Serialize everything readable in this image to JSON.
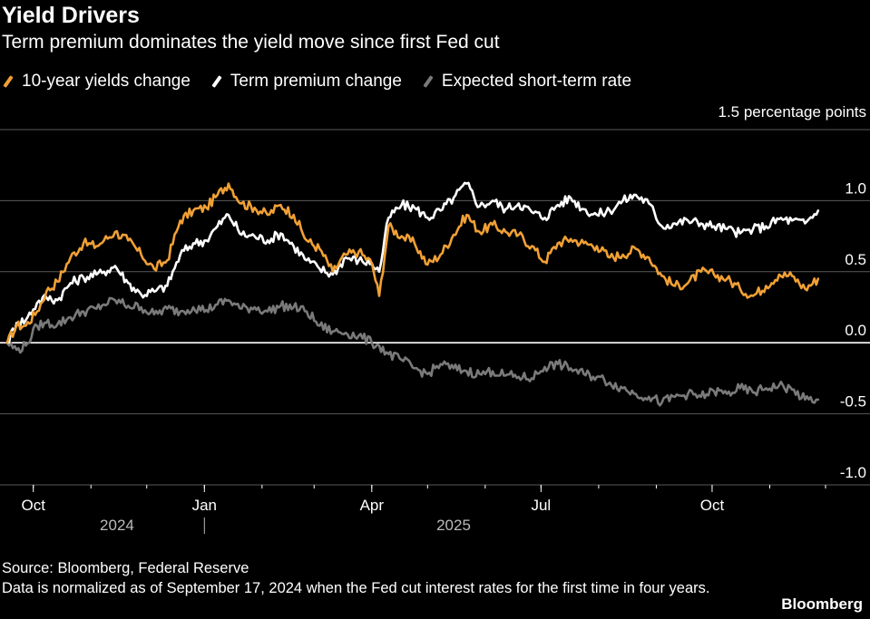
{
  "header": {
    "title": "Yield Drivers",
    "subtitle": "Term premium dominates the yield move since first Fed cut"
  },
  "legend": [
    {
      "label": "10-year yields change",
      "color": "#f0a035"
    },
    {
      "label": "Term premium change",
      "color": "#ffffff"
    },
    {
      "label": "Expected short-term rate",
      "color": "#7a7a7a"
    }
  ],
  "footer": {
    "source": "Source: Bloomberg, Federal Reserve",
    "note": "Data is normalized as of September 17, 2024 when the Fed cut interest rates for the first time in four years.",
    "brand": "Bloomberg"
  },
  "chart_data": {
    "type": "line",
    "unit_label": "1.5 percentage points",
    "ylim": [
      -1.0,
      1.5
    ],
    "yticks": [
      1.5,
      1.0,
      0.5,
      0.0,
      -0.5,
      -1.0
    ],
    "ytick_labels": [
      "",
      "1.0",
      "0.5",
      "0.0",
      "-0.5",
      "-1.0"
    ],
    "xlim": [
      "2024-09-17",
      "2025-12-01"
    ],
    "xticks": [
      {
        "date": "2024-10-01",
        "label": "Oct"
      },
      {
        "date": "2025-01-01",
        "label": "Jan"
      },
      {
        "date": "2025-04-01",
        "label": "Apr"
      },
      {
        "date": "2025-07-01",
        "label": "Jul"
      },
      {
        "date": "2025-10-01",
        "label": "Oct"
      }
    ],
    "year_labels": [
      {
        "date": "2024-11-15",
        "label": "2024"
      },
      {
        "date": "2025-05-15",
        "label": "2025"
      }
    ],
    "year_divider": "2025-01-01",
    "grid": true,
    "series": [
      {
        "name": "10-year yields change",
        "color": "#f0a035",
        "points": [
          [
            "2024-09-17",
            0.0
          ],
          [
            "2024-09-22",
            0.12
          ],
          [
            "2024-09-27",
            0.12
          ],
          [
            "2024-10-03",
            0.22
          ],
          [
            "2024-10-08",
            0.36
          ],
          [
            "2024-10-14",
            0.43
          ],
          [
            "2024-10-21",
            0.6
          ],
          [
            "2024-10-28",
            0.7
          ],
          [
            "2024-11-04",
            0.68
          ],
          [
            "2024-11-08",
            0.72
          ],
          [
            "2024-11-14",
            0.78
          ],
          [
            "2024-11-21",
            0.72
          ],
          [
            "2024-11-28",
            0.62
          ],
          [
            "2024-12-05",
            0.52
          ],
          [
            "2024-12-12",
            0.58
          ],
          [
            "2024-12-19",
            0.86
          ],
          [
            "2024-12-26",
            0.93
          ],
          [
            "2025-01-02",
            0.95
          ],
          [
            "2025-01-08",
            1.04
          ],
          [
            "2025-01-14",
            1.12
          ],
          [
            "2025-01-21",
            0.98
          ],
          [
            "2025-01-28",
            0.95
          ],
          [
            "2025-02-04",
            0.9
          ],
          [
            "2025-02-11",
            0.97
          ],
          [
            "2025-02-18",
            0.9
          ],
          [
            "2025-02-25",
            0.72
          ],
          [
            "2025-03-04",
            0.66
          ],
          [
            "2025-03-11",
            0.5
          ],
          [
            "2025-03-18",
            0.62
          ],
          [
            "2025-03-25",
            0.64
          ],
          [
            "2025-04-01",
            0.56
          ],
          [
            "2025-04-05",
            0.33
          ],
          [
            "2025-04-10",
            0.82
          ],
          [
            "2025-04-17",
            0.75
          ],
          [
            "2025-04-24",
            0.7
          ],
          [
            "2025-05-01",
            0.55
          ],
          [
            "2025-05-08",
            0.62
          ],
          [
            "2025-05-15",
            0.76
          ],
          [
            "2025-05-22",
            0.9
          ],
          [
            "2025-05-29",
            0.78
          ],
          [
            "2025-06-05",
            0.83
          ],
          [
            "2025-06-12",
            0.78
          ],
          [
            "2025-06-19",
            0.76
          ],
          [
            "2025-06-26",
            0.68
          ],
          [
            "2025-07-03",
            0.57
          ],
          [
            "2025-07-10",
            0.7
          ],
          [
            "2025-07-17",
            0.73
          ],
          [
            "2025-07-24",
            0.7
          ],
          [
            "2025-07-31",
            0.68
          ],
          [
            "2025-08-07",
            0.6
          ],
          [
            "2025-08-14",
            0.62
          ],
          [
            "2025-08-21",
            0.66
          ],
          [
            "2025-08-28",
            0.6
          ],
          [
            "2025-09-04",
            0.47
          ],
          [
            "2025-09-11",
            0.4
          ],
          [
            "2025-09-18",
            0.42
          ],
          [
            "2025-09-25",
            0.5
          ],
          [
            "2025-10-02",
            0.48
          ],
          [
            "2025-10-09",
            0.45
          ],
          [
            "2025-10-16",
            0.38
          ],
          [
            "2025-10-23",
            0.33
          ],
          [
            "2025-10-30",
            0.4
          ],
          [
            "2025-11-06",
            0.48
          ],
          [
            "2025-11-13",
            0.47
          ],
          [
            "2025-11-20",
            0.38
          ],
          [
            "2025-11-27",
            0.45
          ]
        ]
      },
      {
        "name": "Term premium change",
        "color": "#ffffff",
        "points": [
          [
            "2024-09-17",
            0.0
          ],
          [
            "2024-09-22",
            0.14
          ],
          [
            "2024-09-27",
            0.16
          ],
          [
            "2024-10-03",
            0.28
          ],
          [
            "2024-10-08",
            0.32
          ],
          [
            "2024-10-14",
            0.3
          ],
          [
            "2024-10-21",
            0.42
          ],
          [
            "2024-10-28",
            0.46
          ],
          [
            "2024-11-04",
            0.48
          ],
          [
            "2024-11-08",
            0.5
          ],
          [
            "2024-11-14",
            0.54
          ],
          [
            "2024-11-21",
            0.42
          ],
          [
            "2024-11-28",
            0.34
          ],
          [
            "2024-12-05",
            0.36
          ],
          [
            "2024-12-12",
            0.4
          ],
          [
            "2024-12-19",
            0.62
          ],
          [
            "2024-12-26",
            0.7
          ],
          [
            "2025-01-02",
            0.72
          ],
          [
            "2025-01-08",
            0.82
          ],
          [
            "2025-01-14",
            0.9
          ],
          [
            "2025-01-21",
            0.76
          ],
          [
            "2025-01-28",
            0.75
          ],
          [
            "2025-02-04",
            0.72
          ],
          [
            "2025-02-11",
            0.77
          ],
          [
            "2025-02-18",
            0.68
          ],
          [
            "2025-02-25",
            0.58
          ],
          [
            "2025-03-04",
            0.52
          ],
          [
            "2025-03-11",
            0.48
          ],
          [
            "2025-03-18",
            0.6
          ],
          [
            "2025-03-25",
            0.58
          ],
          [
            "2025-04-01",
            0.56
          ],
          [
            "2025-04-05",
            0.5
          ],
          [
            "2025-04-10",
            0.88
          ],
          [
            "2025-04-17",
            0.97
          ],
          [
            "2025-04-24",
            0.95
          ],
          [
            "2025-05-01",
            0.88
          ],
          [
            "2025-05-08",
            0.93
          ],
          [
            "2025-05-15",
            1.02
          ],
          [
            "2025-05-22",
            1.12
          ],
          [
            "2025-05-29",
            0.96
          ],
          [
            "2025-06-05",
            1.0
          ],
          [
            "2025-06-12",
            0.94
          ],
          [
            "2025-06-19",
            0.98
          ],
          [
            "2025-06-26",
            0.92
          ],
          [
            "2025-07-03",
            0.88
          ],
          [
            "2025-07-10",
            0.97
          ],
          [
            "2025-07-17",
            1.02
          ],
          [
            "2025-07-24",
            0.94
          ],
          [
            "2025-07-31",
            0.9
          ],
          [
            "2025-08-07",
            0.93
          ],
          [
            "2025-08-14",
            1.0
          ],
          [
            "2025-08-21",
            1.04
          ],
          [
            "2025-08-28",
            0.98
          ],
          [
            "2025-09-04",
            0.82
          ],
          [
            "2025-09-11",
            0.84
          ],
          [
            "2025-09-18",
            0.86
          ],
          [
            "2025-09-25",
            0.84
          ],
          [
            "2025-10-02",
            0.82
          ],
          [
            "2025-10-09",
            0.8
          ],
          [
            "2025-10-16",
            0.77
          ],
          [
            "2025-10-23",
            0.8
          ],
          [
            "2025-10-30",
            0.82
          ],
          [
            "2025-11-06",
            0.87
          ],
          [
            "2025-11-13",
            0.86
          ],
          [
            "2025-11-20",
            0.84
          ],
          [
            "2025-11-27",
            0.93
          ]
        ]
      },
      {
        "name": "Expected short-term rate",
        "color": "#7a7a7a",
        "points": [
          [
            "2024-09-17",
            0.0
          ],
          [
            "2024-09-22",
            -0.05
          ],
          [
            "2024-09-27",
            -0.02
          ],
          [
            "2024-10-03",
            0.12
          ],
          [
            "2024-10-08",
            0.14
          ],
          [
            "2024-10-14",
            0.13
          ],
          [
            "2024-10-21",
            0.18
          ],
          [
            "2024-10-28",
            0.22
          ],
          [
            "2024-11-04",
            0.24
          ],
          [
            "2024-11-08",
            0.27
          ],
          [
            "2024-11-14",
            0.3
          ],
          [
            "2024-11-21",
            0.26
          ],
          [
            "2024-11-28",
            0.25
          ],
          [
            "2024-12-05",
            0.2
          ],
          [
            "2024-12-12",
            0.24
          ],
          [
            "2024-12-19",
            0.22
          ],
          [
            "2024-12-26",
            0.25
          ],
          [
            "2025-01-02",
            0.23
          ],
          [
            "2025-01-08",
            0.27
          ],
          [
            "2025-01-14",
            0.3
          ],
          [
            "2025-01-21",
            0.24
          ],
          [
            "2025-01-28",
            0.25
          ],
          [
            "2025-02-04",
            0.22
          ],
          [
            "2025-02-11",
            0.26
          ],
          [
            "2025-02-18",
            0.25
          ],
          [
            "2025-02-25",
            0.22
          ],
          [
            "2025-03-04",
            0.12
          ],
          [
            "2025-03-11",
            0.08
          ],
          [
            "2025-03-18",
            0.07
          ],
          [
            "2025-03-25",
            0.05
          ],
          [
            "2025-04-01",
            0.0
          ],
          [
            "2025-04-05",
            -0.02
          ],
          [
            "2025-04-10",
            -0.08
          ],
          [
            "2025-04-17",
            -0.12
          ],
          [
            "2025-04-24",
            -0.18
          ],
          [
            "2025-05-01",
            -0.22
          ],
          [
            "2025-05-08",
            -0.15
          ],
          [
            "2025-05-15",
            -0.18
          ],
          [
            "2025-05-22",
            -0.2
          ],
          [
            "2025-05-29",
            -0.22
          ],
          [
            "2025-06-05",
            -0.2
          ],
          [
            "2025-06-12",
            -0.23
          ],
          [
            "2025-06-19",
            -0.24
          ],
          [
            "2025-06-26",
            -0.25
          ],
          [
            "2025-07-03",
            -0.17
          ],
          [
            "2025-07-10",
            -0.15
          ],
          [
            "2025-07-17",
            -0.18
          ],
          [
            "2025-07-24",
            -0.22
          ],
          [
            "2025-07-31",
            -0.24
          ],
          [
            "2025-08-07",
            -0.28
          ],
          [
            "2025-08-14",
            -0.32
          ],
          [
            "2025-08-21",
            -0.36
          ],
          [
            "2025-08-28",
            -0.38
          ],
          [
            "2025-09-04",
            -0.42
          ],
          [
            "2025-09-11",
            -0.38
          ],
          [
            "2025-09-18",
            -0.36
          ],
          [
            "2025-09-25",
            -0.38
          ],
          [
            "2025-10-02",
            -0.34
          ],
          [
            "2025-10-09",
            -0.36
          ],
          [
            "2025-10-16",
            -0.32
          ],
          [
            "2025-10-23",
            -0.35
          ],
          [
            "2025-10-30",
            -0.32
          ],
          [
            "2025-11-06",
            -0.3
          ],
          [
            "2025-11-13",
            -0.33
          ],
          [
            "2025-11-20",
            -0.4
          ],
          [
            "2025-11-27",
            -0.4
          ]
        ]
      }
    ]
  }
}
